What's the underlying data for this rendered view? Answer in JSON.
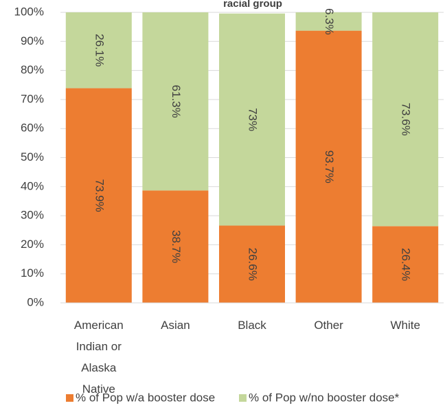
{
  "chart_data": {
    "type": "stacked_bar",
    "title": "racial group",
    "categories": [
      "American Indian or Alaska Native",
      "Asian",
      "Black",
      "Other",
      "White"
    ],
    "series": [
      {
        "name": "% of Pop w/a booster dose",
        "color": "#ed7d31",
        "values": [
          73.9,
          38.7,
          26.6,
          93.7,
          26.4
        ],
        "value_labels": [
          "73.9%",
          "38.7%",
          "26.6%",
          "93.7%",
          "26.4%"
        ]
      },
      {
        "name": "% of Pop w/no booster dose*",
        "color": "#c4d79b",
        "values": [
          26.1,
          61.3,
          73,
          6.3,
          73.6
        ],
        "value_labels": [
          "26.1%",
          "61.3%",
          "73%",
          "6.3%",
          "73.6%"
        ]
      }
    ],
    "ylim": [
      0,
      100
    ],
    "yticks": [
      {
        "value": 0,
        "label": "0%"
      },
      {
        "value": 10,
        "label": "10%"
      },
      {
        "value": 20,
        "label": "20%"
      },
      {
        "value": 30,
        "label": "30%"
      },
      {
        "value": 40,
        "label": "40%"
      },
      {
        "value": 50,
        "label": "50%"
      },
      {
        "value": 60,
        "label": "60%"
      },
      {
        "value": 70,
        "label": "70%"
      },
      {
        "value": 80,
        "label": "80%"
      },
      {
        "value": 90,
        "label": "90%"
      },
      {
        "value": 100,
        "label": "100%"
      }
    ],
    "grid": true,
    "legend": "bottom"
  }
}
